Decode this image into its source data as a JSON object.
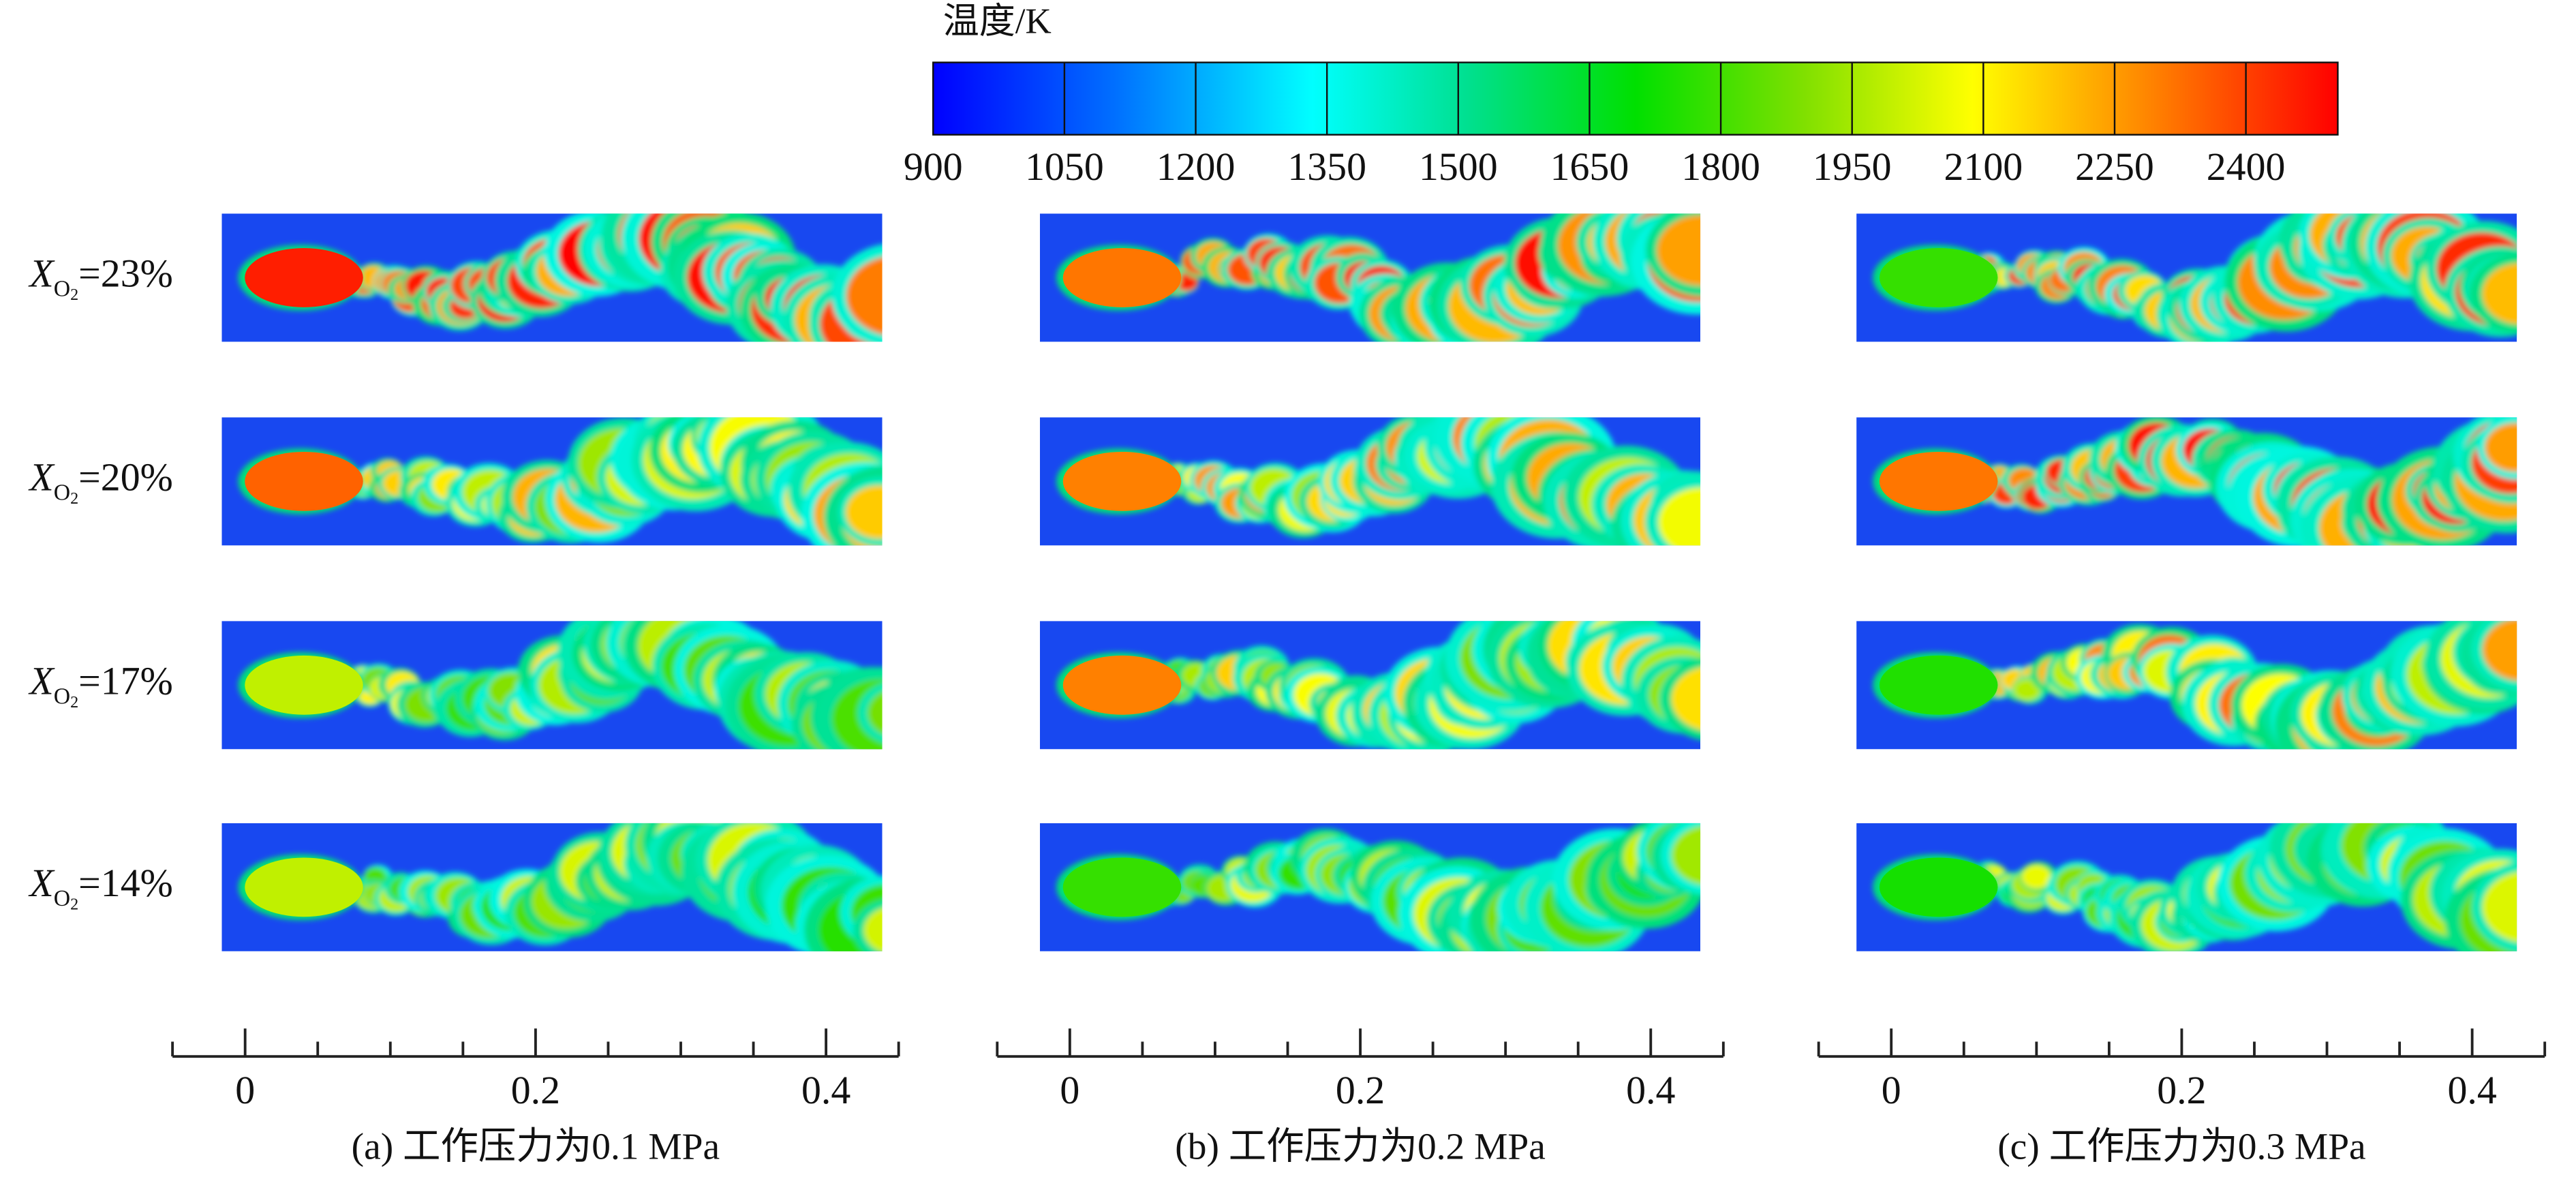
{
  "colorbar": {
    "title": "温度/K",
    "ticks": [
      900,
      1050,
      1200,
      1350,
      1500,
      1650,
      1800,
      1950,
      2100,
      2250,
      2400
    ],
    "lim": [
      900,
      2505
    ]
  },
  "row_labels": [
    {
      "var": "X",
      "sub": "O",
      "subsub": "2",
      "text": "=23%"
    },
    {
      "var": "X",
      "sub": "O",
      "subsub": "2",
      "text": "=20%"
    },
    {
      "var": "X",
      "sub": "O",
      "subsub": "2",
      "text": "=17%"
    },
    {
      "var": "X",
      "sub": "O",
      "subsub": "2",
      "text": "=14%"
    }
  ],
  "panels": [
    {
      "caption": "(a) 工作压力为0.1 MPa",
      "xlim": [
        -0.05,
        0.45
      ],
      "xticks": [
        0,
        0.2,
        0.4
      ],
      "minor_xticks": [
        -0.05,
        0.05,
        0.1,
        0.15,
        0.25,
        0.3,
        0.35,
        0.45
      ]
    },
    {
      "caption": "(b) 工作压力为0.2 MPa",
      "xlim": [
        -0.05,
        0.45
      ],
      "xticks": [
        0,
        0.2,
        0.4
      ],
      "minor_xticks": [
        -0.05,
        0.05,
        0.1,
        0.15,
        0.25,
        0.3,
        0.35,
        0.45
      ]
    },
    {
      "caption": "(c) 工作压力为0.3 MPa",
      "xlim": [
        -0.05,
        0.45
      ],
      "xticks": [
        0,
        0.2,
        0.4
      ],
      "minor_xticks": [
        -0.05,
        0.05,
        0.1,
        0.15,
        0.25,
        0.3,
        0.35,
        0.45
      ]
    }
  ]
}
